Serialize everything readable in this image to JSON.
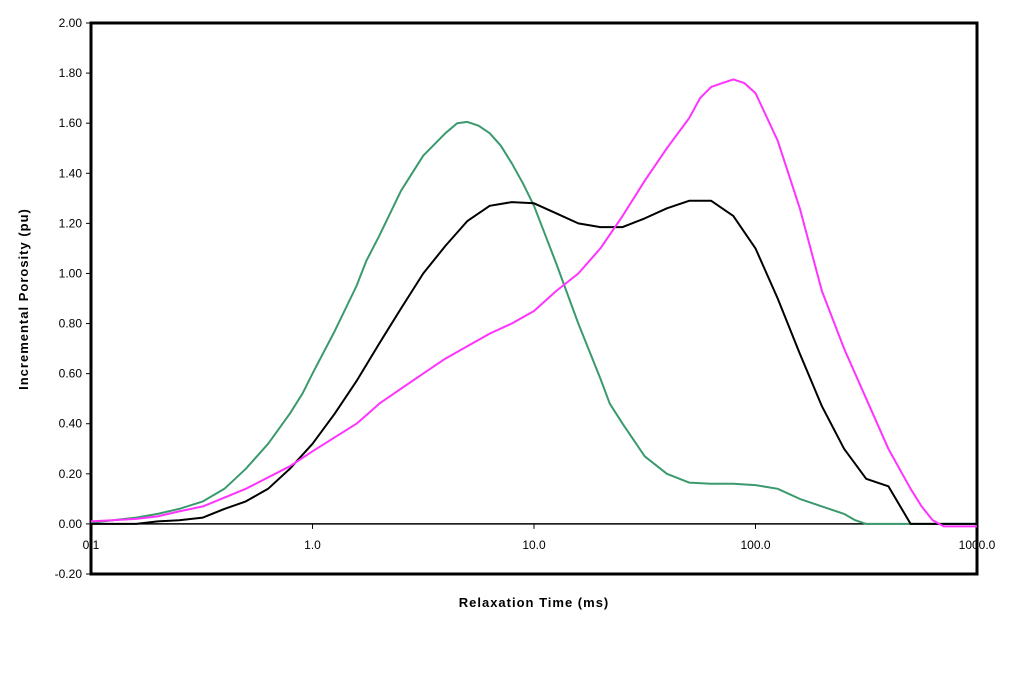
{
  "chart_data": {
    "type": "line",
    "title": "",
    "xlabel": "Relaxation Time (ms)",
    "ylabel": "Incremental Porosity (pu)",
    "x_scale": "log",
    "xlim": [
      0.1,
      1000.0
    ],
    "ylim": [
      -0.2,
      2.0
    ],
    "x_ticks": [
      "0.1",
      "1.0",
      "10.0",
      "100.0",
      "1000.0"
    ],
    "x_tick_values": [
      0.1,
      1,
      10,
      100,
      1000
    ],
    "y_ticks": [
      "-0.20",
      "0.00",
      "0.20",
      "0.40",
      "0.60",
      "0.80",
      "1.00",
      "1.20",
      "1.40",
      "1.60",
      "1.80",
      "2.00"
    ],
    "y_tick_values": [
      -0.2,
      0,
      0.2,
      0.4,
      0.6,
      0.8,
      1.0,
      1.2,
      1.4,
      1.6,
      1.8,
      2.0
    ],
    "grid": false,
    "legend": "none",
    "series": [
      {
        "color": "#3a9a6e",
        "x": [
          0.1,
          0.16,
          0.2,
          0.25,
          0.32,
          0.4,
          0.5,
          0.63,
          0.79,
          0.9,
          1.0,
          1.26,
          1.58,
          1.75,
          2.0,
          2.51,
          3.16,
          3.98,
          4.5,
          5.0,
          5.62,
          6.31,
          7.08,
          7.94,
          8.91,
          10.0,
          12.59,
          15.85,
          19.95,
          22.0,
          25.12,
          31.62,
          39.81,
          50.12,
          63.1,
          79.43,
          100.0,
          125.9,
          158.5,
          199.5,
          251.2,
          281.8,
          316.2,
          398.1,
          501.2,
          630.9,
          1000.0
        ],
        "y": [
          0.005,
          0.025,
          0.04,
          0.06,
          0.09,
          0.14,
          0.22,
          0.32,
          0.44,
          0.52,
          0.6,
          0.77,
          0.95,
          1.05,
          1.15,
          1.33,
          1.47,
          1.56,
          1.6,
          1.605,
          1.59,
          1.56,
          1.51,
          1.44,
          1.36,
          1.27,
          1.04,
          0.8,
          0.58,
          0.48,
          0.4,
          0.27,
          0.2,
          0.165,
          0.16,
          0.16,
          0.155,
          0.14,
          0.1,
          0.07,
          0.04,
          0.015,
          0.0,
          0.0,
          0.0,
          0.0,
          0.0
        ]
      },
      {
        "color": "#000000",
        "x": [
          0.1,
          0.16,
          0.2,
          0.25,
          0.32,
          0.4,
          0.5,
          0.63,
          0.79,
          1.0,
          1.26,
          1.58,
          2.0,
          2.51,
          3.16,
          3.98,
          5.01,
          6.31,
          7.94,
          10.0,
          12.59,
          15.85,
          19.95,
          25.12,
          31.62,
          39.81,
          50.12,
          63.1,
          79.43,
          100.0,
          125.9,
          158.5,
          199.5,
          251.2,
          316.2,
          398.1,
          501.2,
          630.9,
          1000.0
        ],
        "y": [
          0.0,
          0.0,
          0.01,
          0.015,
          0.025,
          0.06,
          0.09,
          0.14,
          0.22,
          0.32,
          0.44,
          0.57,
          0.72,
          0.86,
          1.0,
          1.11,
          1.21,
          1.27,
          1.285,
          1.28,
          1.24,
          1.2,
          1.185,
          1.185,
          1.22,
          1.26,
          1.29,
          1.29,
          1.23,
          1.1,
          0.9,
          0.68,
          0.47,
          0.3,
          0.18,
          0.15,
          0.0,
          0.0,
          0.0
        ]
      },
      {
        "color": "#ff33ff",
        "x": [
          0.1,
          0.16,
          0.2,
          0.25,
          0.32,
          0.5,
          0.79,
          1.0,
          1.58,
          1.78,
          2.0,
          2.51,
          3.16,
          3.98,
          5.01,
          6.31,
          7.94,
          10.0,
          12.59,
          15.85,
          19.95,
          25.12,
          31.62,
          39.81,
          50.12,
          56.2,
          63.1,
          70.8,
          79.43,
          89.1,
          100.0,
          125.9,
          158.5,
          199.5,
          251.2,
          316.2,
          398.1,
          501.2,
          562.3,
          630.9,
          707.9,
          1000.0
        ],
        "y": [
          0.01,
          0.02,
          0.03,
          0.05,
          0.07,
          0.14,
          0.23,
          0.29,
          0.4,
          0.44,
          0.48,
          0.54,
          0.6,
          0.66,
          0.71,
          0.76,
          0.8,
          0.85,
          0.93,
          1.0,
          1.1,
          1.23,
          1.37,
          1.5,
          1.62,
          1.7,
          1.745,
          1.76,
          1.775,
          1.76,
          1.72,
          1.53,
          1.26,
          0.93,
          0.7,
          0.5,
          0.3,
          0.14,
          0.07,
          0.015,
          -0.01,
          -0.01
        ]
      }
    ]
  }
}
